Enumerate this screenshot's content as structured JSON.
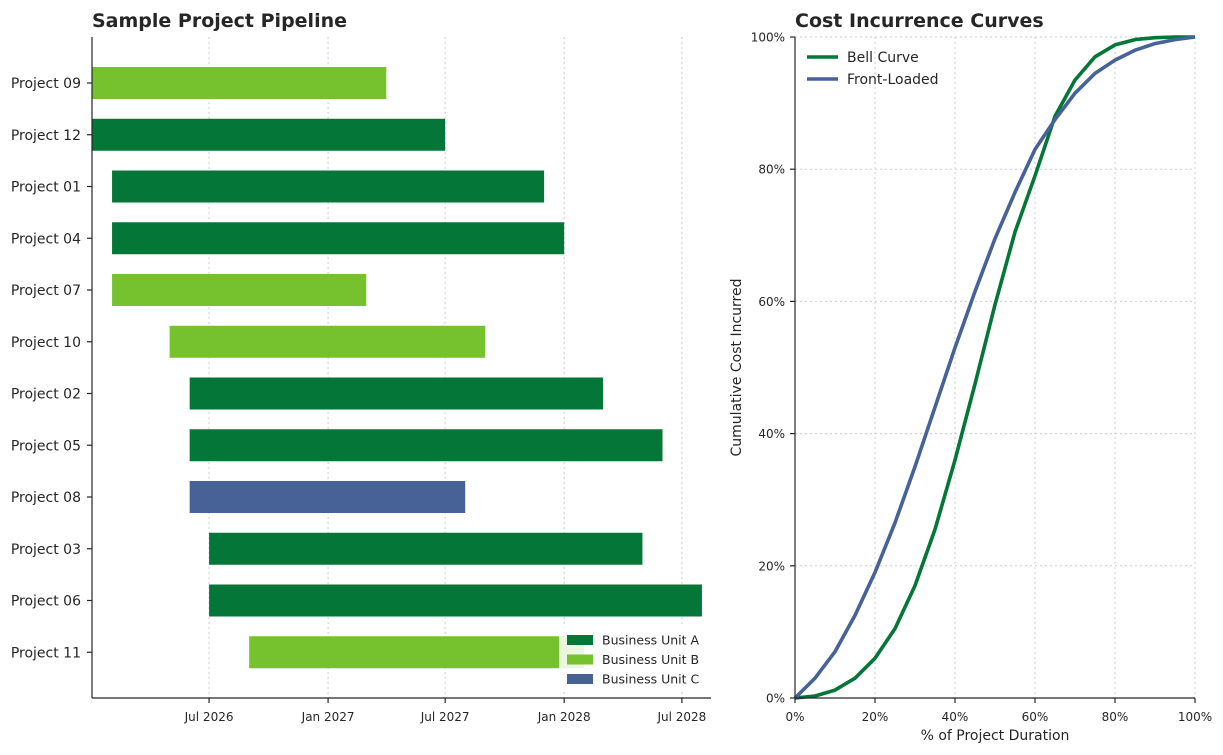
{
  "chart_data": [
    {
      "type": "bar",
      "orientation": "horizontal-gantt",
      "title": "Sample Project Pipeline",
      "xlabel": "",
      "ylabel": "",
      "x_ticks": [
        "Jul 2026",
        "Jan 2027",
        "Jul 2027",
        "Jan 2028",
        "Jul 2028"
      ],
      "x_range": [
        "2026-01-01",
        "2028-08-15"
      ],
      "grid": "x-dotted",
      "legend_position": "lower-right",
      "groups": [
        {
          "name": "Business Unit A",
          "color": "#047637"
        },
        {
          "name": "Business Unit B",
          "color": "#76c22e"
        },
        {
          "name": "Business Unit C",
          "color": "#466296"
        }
      ],
      "projects": [
        {
          "name": "Project 09",
          "start": "2026-01-01",
          "end": "2027-04-01",
          "group": "Business Unit B"
        },
        {
          "name": "Project 12",
          "start": "2026-01-01",
          "end": "2027-07-01",
          "group": "Business Unit A"
        },
        {
          "name": "Project 01",
          "start": "2026-02-01",
          "end": "2027-12-01",
          "group": "Business Unit A"
        },
        {
          "name": "Project 04",
          "start": "2026-02-01",
          "end": "2028-01-01",
          "group": "Business Unit A"
        },
        {
          "name": "Project 07",
          "start": "2026-02-01",
          "end": "2027-03-01",
          "group": "Business Unit B"
        },
        {
          "name": "Project 10",
          "start": "2026-05-01",
          "end": "2027-09-01",
          "group": "Business Unit B"
        },
        {
          "name": "Project 02",
          "start": "2026-06-01",
          "end": "2028-03-01",
          "group": "Business Unit A"
        },
        {
          "name": "Project 05",
          "start": "2026-06-01",
          "end": "2028-06-01",
          "group": "Business Unit A"
        },
        {
          "name": "Project 08",
          "start": "2026-06-01",
          "end": "2027-08-01",
          "group": "Business Unit C"
        },
        {
          "name": "Project 03",
          "start": "2026-07-01",
          "end": "2028-05-01",
          "group": "Business Unit A"
        },
        {
          "name": "Project 06",
          "start": "2026-07-01",
          "end": "2028-08-01",
          "group": "Business Unit A"
        },
        {
          "name": "Project 11",
          "start": "2026-09-01",
          "end": "2028-02-01",
          "group": "Business Unit B"
        }
      ]
    },
    {
      "type": "line",
      "title": "Cost Incurrence Curves",
      "xlabel": "% of Project Duration",
      "ylabel": "Cumulative Cost Incurred",
      "xlim": [
        0,
        100
      ],
      "ylim": [
        0,
        100
      ],
      "x_ticks": [
        "0%",
        "20%",
        "40%",
        "60%",
        "80%",
        "100%"
      ],
      "y_ticks": [
        "0%",
        "20%",
        "40%",
        "60%",
        "80%",
        "100%"
      ],
      "grid": "dotted",
      "legend_position": "top-left",
      "x": [
        0,
        5,
        10,
        15,
        20,
        25,
        30,
        35,
        40,
        45,
        50,
        55,
        60,
        65,
        70,
        75,
        80,
        85,
        90,
        95,
        100
      ],
      "series": [
        {
          "name": "Bell Curve",
          "color": "#047637",
          "values": [
            0,
            0.3,
            1.2,
            3,
            6,
            10.5,
            17,
            25.5,
            36,
            47.5,
            59.5,
            70.5,
            79,
            88,
            93.5,
            97,
            98.8,
            99.6,
            99.9,
            100,
            100
          ]
        },
        {
          "name": "Front-Loaded",
          "color": "#466296",
          "values": [
            0,
            3,
            7,
            12.5,
            19,
            26.5,
            35,
            44,
            53,
            61.5,
            69.5,
            76.5,
            83,
            87.5,
            91.5,
            94.5,
            96.5,
            98,
            99,
            99.6,
            100
          ]
        }
      ]
    }
  ]
}
